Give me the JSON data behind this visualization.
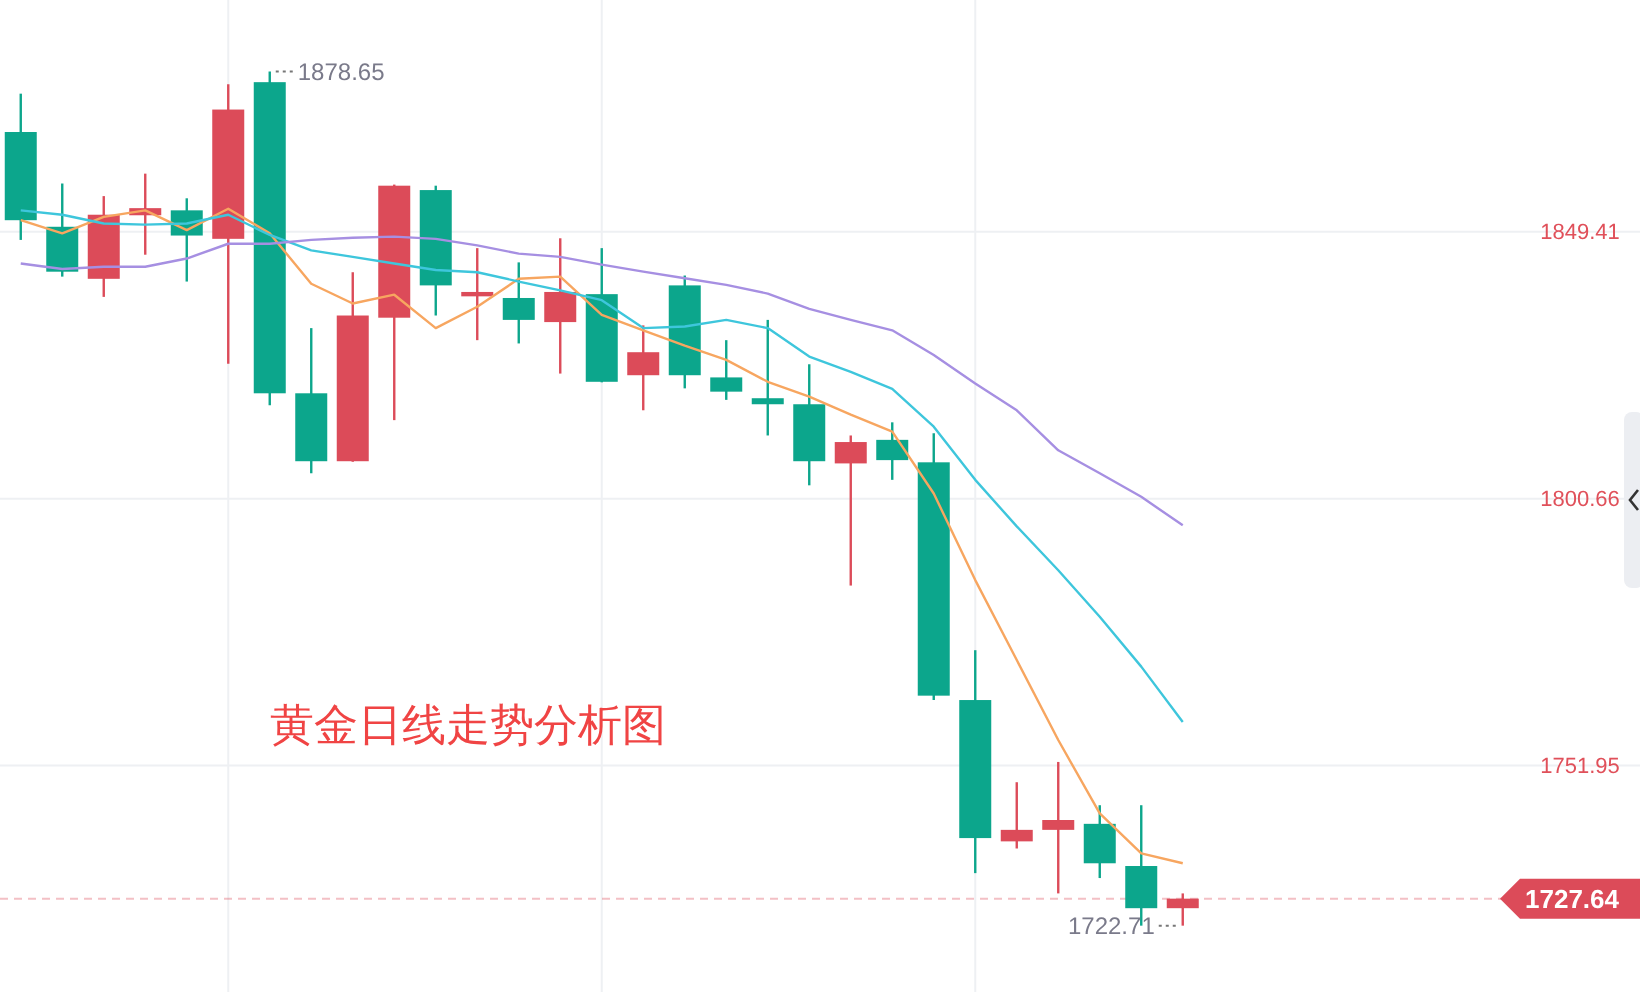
{
  "chart_data": {
    "type": "candlestick",
    "title": "黄金日线走势分析图",
    "categories": [
      null,
      null,
      null,
      null,
      null,
      null,
      null,
      null,
      null,
      null,
      null,
      null,
      null,
      null,
      null,
      null,
      null,
      null,
      null,
      null,
      null,
      null,
      null,
      null,
      null,
      null,
      null,
      null,
      null
    ],
    "ohlc": [
      [
        1867.6,
        1874.6,
        1847.9,
        1851.5
      ],
      [
        1850.3,
        1858.2,
        1841.2,
        1842.1
      ],
      [
        1840.8,
        1855.9,
        1837.5,
        1852.5
      ],
      [
        1852.4,
        1860.0,
        1845.2,
        1853.7
      ],
      [
        1853.3,
        1855.5,
        1840.3,
        1848.7
      ],
      [
        1848.1,
        1876.3,
        1825.3,
        1871.7
      ],
      [
        1876.7,
        1878.65,
        1817.7,
        1819.9
      ],
      [
        1819.9,
        1831.8,
        1805.3,
        1807.5
      ],
      [
        1807.5,
        1842.0,
        1807.4,
        1834.1
      ],
      [
        1833.7,
        1858.0,
        1815.0,
        1857.8
      ],
      [
        1857.0,
        1857.8,
        1834.1,
        1839.6
      ],
      [
        1837.6,
        1846.4,
        1829.6,
        1838.4
      ],
      [
        1837.3,
        1843.8,
        1829.0,
        1833.3
      ],
      [
        1832.9,
        1848.2,
        1823.5,
        1838.4
      ],
      [
        1838.0,
        1846.4,
        1821.9,
        1822.0
      ],
      [
        1823.2,
        1832.3,
        1816.8,
        1827.4
      ],
      [
        1839.6,
        1841.4,
        1820.8,
        1823.2
      ],
      [
        1822.8,
        1829.6,
        1818.7,
        1820.2
      ],
      [
        1819.0,
        1833.3,
        1812.2,
        1817.9
      ],
      [
        1817.9,
        1825.2,
        1803.1,
        1807.5
      ],
      [
        1807.1,
        1812.2,
        1784.8,
        1811.0
      ],
      [
        1811.4,
        1814.6,
        1804.1,
        1807.7
      ],
      [
        1807.3,
        1812.6,
        1763.9,
        1764.7
      ],
      [
        1763.9,
        1773.0,
        1732.3,
        1738.7
      ],
      [
        1738.1,
        1748.9,
        1736.8,
        1740.2
      ],
      [
        1740.2,
        1752.6,
        1728.6,
        1742.0
      ],
      [
        1741.3,
        1744.7,
        1731.4,
        1734.1
      ],
      [
        1733.6,
        1744.7,
        1722.71,
        1725.9
      ],
      [
        1725.9,
        1728.6,
        1722.71,
        1727.64
      ]
    ],
    "colors": [
      "#0ca68c",
      "#0ca68c",
      "#dc4b59",
      "#dc4b59",
      "#0ca68c",
      "#dc4b59",
      "#0ca68c",
      "#0ca68c",
      "#dc4b59",
      "#dc4b59",
      "#0ca68c",
      "#dc4b59",
      "#0ca68c",
      "#dc4b59",
      "#0ca68c",
      "#dc4b59",
      "#0ca68c",
      "#0ca68c",
      "#0ca68c",
      "#0ca68c",
      "#dc4b59",
      "#0ca68c",
      "#0ca68c",
      "#0ca68c",
      "#dc4b59",
      "#dc4b59",
      "#0ca68c",
      "#0ca68c",
      "#dc4b59"
    ],
    "series": [
      {
        "type": "line",
        "color": "#f7a660",
        "values": [
          1851.5,
          1849.1,
          1852.1,
          1853.3,
          1849.7,
          1853.6,
          1849.1,
          1839.9,
          1836.3,
          1837.9,
          1831.8,
          1835.7,
          1840.8,
          1841.2,
          1834.2,
          1831.4,
          1828.6,
          1826.0,
          1822.0,
          1819.3,
          1816.0,
          1812.9,
          1801.6,
          1785.8,
          1771.2,
          1756.6,
          1743.2,
          1735.9,
          1734.1
        ]
      },
      {
        "type": "line",
        "color": "#3ec6dc",
        "values": [
          1853.3,
          1852.5,
          1850.9,
          1850.7,
          1850.9,
          1852.5,
          1848.8,
          1846.0,
          1844.8,
          1843.6,
          1842.4,
          1842.0,
          1840.3,
          1838.7,
          1836.9,
          1831.8,
          1832.1,
          1833.3,
          1831.8,
          1826.6,
          1823.8,
          1820.7,
          1813.8,
          1804.1,
          1795.6,
          1787.6,
          1779.1,
          1770.0,
          1759.9
        ]
      },
      {
        "type": "line",
        "color": "#a68fe2",
        "values": [
          1843.6,
          1842.6,
          1843.0,
          1843.0,
          1844.5,
          1847.2,
          1847.2,
          1847.9,
          1848.3,
          1848.5,
          1848.1,
          1846.9,
          1845.4,
          1844.8,
          1843.4,
          1842.1,
          1840.9,
          1839.7,
          1838.1,
          1835.3,
          1833.3,
          1831.4,
          1826.9,
          1821.7,
          1816.8,
          1809.5,
          1805.3,
          1801.0,
          1795.8
        ]
      }
    ],
    "ylim": [
      1710.6,
      1891.7
    ],
    "yticks": [
      1751.95,
      1800.66,
      1849.41
    ],
    "tick_labels": "y",
    "grid": true,
    "ref_lines": [
      {
        "axis": "y",
        "value": 1727.64,
        "label": "1727.64",
        "color": "#dc4b59",
        "line_style": "dashed"
      }
    ],
    "annotations": [
      "1878.65",
      "1722.71"
    ]
  }
}
